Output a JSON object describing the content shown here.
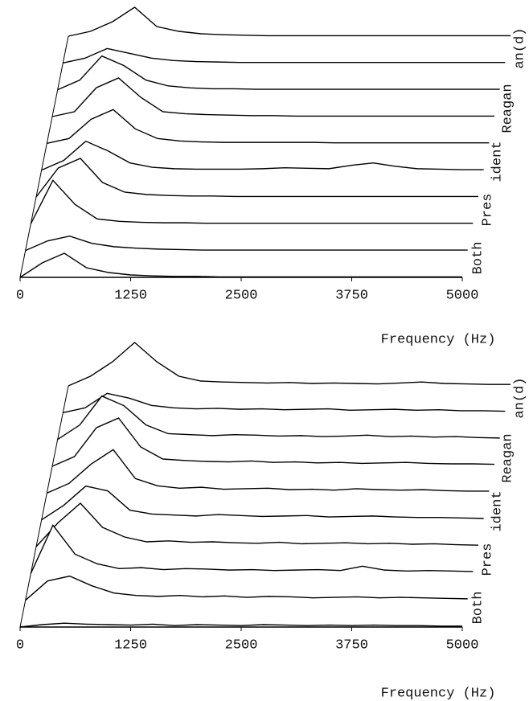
{
  "chart_data": [
    {
      "type": "waterfall",
      "xlabel": "Frequency (Hz)",
      "xlim": [
        0,
        5000
      ],
      "xticks": [
        0,
        1250,
        2500,
        3750,
        5000
      ],
      "ylim": [
        0,
        10
      ],
      "color": "#000000",
      "segments": [
        "Both",
        "Pres",
        "ident",
        "Reagan",
        "an(d)"
      ],
      "x": [
        0,
        250,
        500,
        750,
        1000,
        1250,
        1500,
        1750,
        2000,
        2250,
        2500,
        2750,
        3000,
        3250,
        3500,
        3750,
        4000,
        4250,
        4500,
        4750,
        5000
      ],
      "series": [
        {
          "values": [
            0,
            3,
            5,
            2,
            1,
            0.5,
            0.3,
            0.2,
            0.2,
            0.1,
            0.1,
            0.1,
            0.1,
            0.1,
            0.1,
            0.1,
            0.1,
            0.1,
            0.1,
            0.1,
            0.1
          ]
        },
        {
          "values": [
            0,
            2,
            3,
            1.5,
            0.8,
            0.5,
            0.3,
            0.2,
            0.1,
            0.1,
            0.1,
            0.1,
            0.1,
            0.1,
            0.1,
            0.1,
            0.1,
            0.1,
            0.1,
            0.1,
            0.1
          ]
        },
        {
          "values": [
            0,
            9,
            4,
            1,
            0.5,
            0.3,
            0.2,
            0.2,
            0.1,
            0.1,
            0.1,
            0.1,
            0.1,
            0.1,
            0.1,
            0.1,
            0.1,
            0.1,
            0.1,
            0.1,
            0.1
          ]
        },
        {
          "values": [
            0,
            6,
            8,
            3,
            1,
            0.5,
            0.3,
            0.2,
            0.2,
            0.1,
            0.1,
            0.1,
            0.1,
            0.1,
            0.1,
            0.1,
            0.1,
            0.1,
            0.1,
            0.1,
            0.1
          ]
        },
        {
          "values": [
            0,
            2,
            6,
            4,
            1.5,
            0.6,
            0.3,
            0.2,
            0.2,
            0.2,
            0.3,
            0.5,
            0.4,
            0.3,
            1,
            1.5,
            0.8,
            0.3,
            0.2,
            0.1,
            0.1
          ]
        },
        {
          "values": [
            0,
            1,
            5,
            7,
            3,
            1,
            0.5,
            0.3,
            0.2,
            0.2,
            0.2,
            0.2,
            0.2,
            0.1,
            0.1,
            0.1,
            0.1,
            0.1,
            0.1,
            0.1,
            0.1
          ]
        },
        {
          "values": [
            0,
            1,
            6,
            8,
            4,
            1,
            0.6,
            0.4,
            0.3,
            0.2,
            0.2,
            0.1,
            0.1,
            0.1,
            0.1,
            0.1,
            0.1,
            0.1,
            0.1,
            0.1,
            0.1
          ]
        },
        {
          "values": [
            0,
            2,
            7,
            5,
            2,
            0.8,
            0.4,
            0.2,
            0.2,
            0.1,
            0.1,
            0.1,
            0.1,
            0.1,
            0.1,
            0.1,
            0.1,
            0.1,
            0.1,
            0.1,
            0.1
          ]
        },
        {
          "values": [
            0,
            1,
            3,
            2,
            1,
            0.5,
            0.3,
            0.2,
            0.1,
            0.1,
            0.1,
            0.1,
            0.1,
            0.1,
            0.1,
            0.1,
            0.1,
            0.1,
            0.1,
            0.1,
            0.1
          ]
        },
        {
          "values": [
            0,
            1,
            3,
            6,
            2,
            1,
            0.5,
            0.3,
            0.2,
            0.1,
            0.1,
            0.1,
            0.1,
            0.1,
            0.1,
            0.1,
            0.1,
            0.1,
            0.1,
            0.1,
            0.1
          ]
        }
      ]
    },
    {
      "type": "waterfall",
      "xlabel": "Frequency (Hz)",
      "xlim": [
        0,
        5000
      ],
      "xticks": [
        0,
        1250,
        2500,
        3750,
        5000
      ],
      "ylim": [
        0,
        10
      ],
      "color": "#000000",
      "segments": [
        "Both",
        "Pres",
        "ident",
        "Reagan",
        "an(d)"
      ],
      "x": [
        0,
        250,
        500,
        750,
        1000,
        1250,
        1500,
        1750,
        2000,
        2250,
        2500,
        2750,
        3000,
        3250,
        3500,
        3750,
        4000,
        4250,
        4500,
        4750,
        5000
      ],
      "series": [
        {
          "values": [
            0,
            0.5,
            0.8,
            0.6,
            0.5,
            0.4,
            0.6,
            0.3,
            0.5,
            0.4,
            0.3,
            0.5,
            0.4,
            0.3,
            0.4,
            0.3,
            0.4,
            0.3,
            0.3,
            0.2,
            0.2
          ]
        },
        {
          "values": [
            0,
            4,
            5,
            3,
            1.5,
            1,
            0.8,
            1,
            0.7,
            0.9,
            0.6,
            0.8,
            0.7,
            0.5,
            0.6,
            0.7,
            0.5,
            0.6,
            0.5,
            0.4,
            0.3
          ]
        },
        {
          "values": [
            0,
            10,
            4,
            2,
            1,
            1.2,
            0.8,
            1,
            0.9,
            0.7,
            0.8,
            0.6,
            0.7,
            0.8,
            0.6,
            1.5,
            0.7,
            0.5,
            0.6,
            0.5,
            0.4
          ]
        },
        {
          "values": [
            0,
            5,
            9,
            4,
            2,
            1,
            1.2,
            0.9,
            1,
            0.8,
            0.7,
            0.9,
            0.6,
            0.7,
            0.8,
            0.6,
            0.7,
            0.5,
            0.6,
            0.4,
            0.3
          ]
        },
        {
          "values": [
            0,
            3,
            7,
            6,
            2,
            1.2,
            1,
            0.8,
            1.1,
            0.9,
            0.7,
            0.8,
            0.9,
            0.6,
            0.7,
            0.8,
            0.6,
            0.5,
            0.5,
            0.4,
            0.3
          ]
        },
        {
          "values": [
            0,
            2,
            6,
            9,
            3,
            1.5,
            1,
            1.2,
            0.8,
            0.9,
            1,
            0.7,
            0.8,
            0.6,
            0.9,
            0.7,
            0.6,
            0.7,
            0.5,
            0.4,
            0.4
          ]
        },
        {
          "values": [
            0,
            2,
            8,
            10,
            4,
            1.5,
            1.2,
            1,
            0.9,
            1.1,
            0.8,
            0.9,
            0.7,
            0.8,
            0.6,
            0.7,
            0.8,
            0.6,
            0.5,
            0.5,
            0.4
          ]
        },
        {
          "values": [
            0,
            3,
            9,
            7,
            3,
            1.2,
            1,
            0.8,
            1,
            0.9,
            0.7,
            0.8,
            0.6,
            0.7,
            0.9,
            0.6,
            0.7,
            0.5,
            0.6,
            0.4,
            0.3
          ]
        },
        {
          "values": [
            0,
            1,
            4,
            3,
            1.5,
            1,
            0.8,
            0.9,
            0.7,
            0.8,
            0.6,
            0.7,
            0.8,
            0.5,
            0.6,
            0.7,
            0.5,
            0.6,
            0.4,
            0.4,
            0.3
          ]
        },
        {
          "values": [
            0,
            2,
            5,
            9,
            5,
            2,
            1,
            0.8,
            0.7,
            0.6,
            0.7,
            0.5,
            0.6,
            0.5,
            0.4,
            0.6,
            0.8,
            0.5,
            0.4,
            0.3,
            0.3
          ]
        }
      ]
    }
  ]
}
